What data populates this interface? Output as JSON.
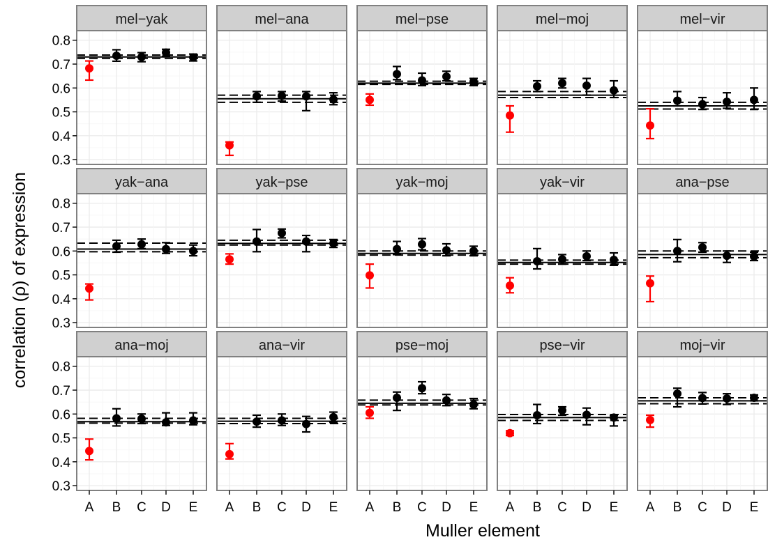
{
  "chart_data": {
    "type": "scatter",
    "subtype": "faceted point estimates with error bars",
    "xlabel": "Muller element",
    "ylabel": "correlation (ρ) of expression",
    "categories": [
      "A",
      "B",
      "C",
      "D",
      "E"
    ],
    "ylim": [
      0.28,
      0.84
    ],
    "yticks": [
      0.3,
      0.4,
      0.5,
      0.6,
      0.7,
      0.8
    ],
    "ytick_labels": [
      "0.3",
      "0.4",
      "0.5",
      "0.6",
      "0.7",
      "0.8"
    ],
    "grid": true,
    "layout": {
      "rows": 3,
      "cols": 5
    },
    "colors": {
      "highlight": "#ff0000",
      "normal": "#000000",
      "strip": "#d0d0d0",
      "border": "#808080"
    },
    "highlight_category": "A",
    "panels": [
      {
        "label": "mel−yak",
        "ref": {
          "mid": 0.73,
          "lo": 0.724,
          "hi": 0.738
        },
        "points": [
          {
            "y": 0.682,
            "lo": 0.633,
            "hi": 0.713
          },
          {
            "y": 0.735,
            "lo": 0.712,
            "hi": 0.76
          },
          {
            "y": 0.73,
            "lo": 0.71,
            "hi": 0.748
          },
          {
            "y": 0.748,
            "lo": 0.733,
            "hi": 0.762
          },
          {
            "y": 0.728,
            "lo": 0.713,
            "hi": 0.742
          }
        ]
      },
      {
        "label": "mel−ana",
        "ref": {
          "mid": 0.555,
          "lo": 0.54,
          "hi": 0.57
        },
        "points": [
          {
            "y": 0.36,
            "lo": 0.318,
            "hi": 0.374
          },
          {
            "y": 0.565,
            "lo": 0.54,
            "hi": 0.585
          },
          {
            "y": 0.567,
            "lo": 0.545,
            "hi": 0.585
          },
          {
            "y": 0.565,
            "lo": 0.505,
            "hi": 0.585
          },
          {
            "y": 0.552,
            "lo": 0.53,
            "hi": 0.58
          }
        ]
      },
      {
        "label": "mel−pse",
        "ref": {
          "mid": 0.62,
          "lo": 0.615,
          "hi": 0.628
        },
        "points": [
          {
            "y": 0.55,
            "lo": 0.528,
            "hi": 0.575
          },
          {
            "y": 0.658,
            "lo": 0.635,
            "hi": 0.69
          },
          {
            "y": 0.632,
            "lo": 0.61,
            "hi": 0.662
          },
          {
            "y": 0.648,
            "lo": 0.63,
            "hi": 0.67
          },
          {
            "y": 0.626,
            "lo": 0.61,
            "hi": 0.64
          }
        ]
      },
      {
        "label": "mel−moj",
        "ref": {
          "mid": 0.57,
          "lo": 0.56,
          "hi": 0.585
        },
        "points": [
          {
            "y": 0.485,
            "lo": 0.415,
            "hi": 0.525
          },
          {
            "y": 0.607,
            "lo": 0.585,
            "hi": 0.63
          },
          {
            "y": 0.62,
            "lo": 0.6,
            "hi": 0.64
          },
          {
            "y": 0.61,
            "lo": 0.57,
            "hi": 0.64
          },
          {
            "y": 0.59,
            "lo": 0.56,
            "hi": 0.63
          }
        ]
      },
      {
        "label": "mel−vir",
        "ref": {
          "mid": 0.525,
          "lo": 0.512,
          "hi": 0.54
        },
        "points": [
          {
            "y": 0.443,
            "lo": 0.388,
            "hi": 0.513
          },
          {
            "y": 0.547,
            "lo": 0.525,
            "hi": 0.585
          },
          {
            "y": 0.532,
            "lo": 0.51,
            "hi": 0.56
          },
          {
            "y": 0.542,
            "lo": 0.515,
            "hi": 0.58
          },
          {
            "y": 0.55,
            "lo": 0.51,
            "hi": 0.6
          }
        ]
      },
      {
        "label": "yak−ana",
        "ref": {
          "mid": 0.608,
          "lo": 0.597,
          "hi": 0.633
        },
        "points": [
          {
            "y": 0.443,
            "lo": 0.395,
            "hi": 0.462
          },
          {
            "y": 0.62,
            "lo": 0.595,
            "hi": 0.645
          },
          {
            "y": 0.628,
            "lo": 0.61,
            "hi": 0.65
          },
          {
            "y": 0.608,
            "lo": 0.59,
            "hi": 0.635
          },
          {
            "y": 0.6,
            "lo": 0.58,
            "hi": 0.625
          }
        ]
      },
      {
        "label": "yak−pse",
        "ref": {
          "mid": 0.632,
          "lo": 0.625,
          "hi": 0.645
        },
        "points": [
          {
            "y": 0.565,
            "lo": 0.545,
            "hi": 0.588
          },
          {
            "y": 0.64,
            "lo": 0.597,
            "hi": 0.69
          },
          {
            "y": 0.675,
            "lo": 0.655,
            "hi": 0.692
          },
          {
            "y": 0.64,
            "lo": 0.597,
            "hi": 0.665
          },
          {
            "y": 0.632,
            "lo": 0.615,
            "hi": 0.648
          }
        ]
      },
      {
        "label": "yak−moj",
        "ref": {
          "mid": 0.59,
          "lo": 0.583,
          "hi": 0.6
        },
        "points": [
          {
            "y": 0.498,
            "lo": 0.445,
            "hi": 0.545
          },
          {
            "y": 0.608,
            "lo": 0.585,
            "hi": 0.64
          },
          {
            "y": 0.628,
            "lo": 0.605,
            "hi": 0.652
          },
          {
            "y": 0.603,
            "lo": 0.58,
            "hi": 0.63
          },
          {
            "y": 0.6,
            "lo": 0.58,
            "hi": 0.62
          }
        ]
      },
      {
        "label": "yak−vir",
        "ref": {
          "mid": 0.552,
          "lo": 0.545,
          "hi": 0.562
        },
        "points": [
          {
            "y": 0.455,
            "lo": 0.425,
            "hi": 0.488
          },
          {
            "y": 0.557,
            "lo": 0.525,
            "hi": 0.61
          },
          {
            "y": 0.565,
            "lo": 0.545,
            "hi": 0.585
          },
          {
            "y": 0.578,
            "lo": 0.56,
            "hi": 0.6
          },
          {
            "y": 0.563,
            "lo": 0.54,
            "hi": 0.592
          }
        ]
      },
      {
        "label": "ana−pse",
        "ref": {
          "mid": 0.585,
          "lo": 0.572,
          "hi": 0.6
        },
        "points": [
          {
            "y": 0.465,
            "lo": 0.388,
            "hi": 0.495
          },
          {
            "y": 0.6,
            "lo": 0.555,
            "hi": 0.648
          },
          {
            "y": 0.615,
            "lo": 0.595,
            "hi": 0.635
          },
          {
            "y": 0.58,
            "lo": 0.552,
            "hi": 0.6
          },
          {
            "y": 0.577,
            "lo": 0.56,
            "hi": 0.595
          }
        ]
      },
      {
        "label": "ana−moj",
        "ref": {
          "mid": 0.568,
          "lo": 0.562,
          "hi": 0.582
        },
        "points": [
          {
            "y": 0.445,
            "lo": 0.408,
            "hi": 0.495
          },
          {
            "y": 0.582,
            "lo": 0.55,
            "hi": 0.622
          },
          {
            "y": 0.58,
            "lo": 0.56,
            "hi": 0.6
          },
          {
            "y": 0.565,
            "lo": 0.552,
            "hi": 0.605
          },
          {
            "y": 0.573,
            "lo": 0.555,
            "hi": 0.605
          }
        ]
      },
      {
        "label": "ana−vir",
        "ref": {
          "mid": 0.57,
          "lo": 0.56,
          "hi": 0.582
        },
        "points": [
          {
            "y": 0.432,
            "lo": 0.412,
            "hi": 0.476
          },
          {
            "y": 0.568,
            "lo": 0.545,
            "hi": 0.595
          },
          {
            "y": 0.573,
            "lo": 0.552,
            "hi": 0.6
          },
          {
            "y": 0.558,
            "lo": 0.525,
            "hi": 0.59
          },
          {
            "y": 0.587,
            "lo": 0.565,
            "hi": 0.608
          }
        ]
      },
      {
        "label": "pse−moj",
        "ref": {
          "mid": 0.645,
          "lo": 0.638,
          "hi": 0.658
        },
        "points": [
          {
            "y": 0.605,
            "lo": 0.582,
            "hi": 0.63
          },
          {
            "y": 0.668,
            "lo": 0.615,
            "hi": 0.692
          },
          {
            "y": 0.708,
            "lo": 0.685,
            "hi": 0.735
          },
          {
            "y": 0.657,
            "lo": 0.635,
            "hi": 0.682
          },
          {
            "y": 0.64,
            "lo": 0.622,
            "hi": 0.665
          }
        ]
      },
      {
        "label": "pse−vir",
        "ref": {
          "mid": 0.585,
          "lo": 0.573,
          "hi": 0.598
        },
        "points": [
          {
            "y": 0.52,
            "lo": 0.51,
            "hi": 0.53
          },
          {
            "y": 0.595,
            "lo": 0.56,
            "hi": 0.64
          },
          {
            "y": 0.615,
            "lo": 0.595,
            "hi": 0.63
          },
          {
            "y": 0.597,
            "lo": 0.555,
            "hi": 0.625
          },
          {
            "y": 0.585,
            "lo": 0.55,
            "hi": 0.595
          }
        ]
      },
      {
        "label": "moj−vir",
        "ref": {
          "mid": 0.655,
          "lo": 0.643,
          "hi": 0.668
        },
        "points": [
          {
            "y": 0.575,
            "lo": 0.545,
            "hi": 0.595
          },
          {
            "y": 0.685,
            "lo": 0.63,
            "hi": 0.708
          },
          {
            "y": 0.667,
            "lo": 0.642,
            "hi": 0.69
          },
          {
            "y": 0.665,
            "lo": 0.64,
            "hi": 0.685
          },
          {
            "y": 0.668,
            "lo": 0.655,
            "hi": 0.68
          }
        ]
      }
    ]
  }
}
